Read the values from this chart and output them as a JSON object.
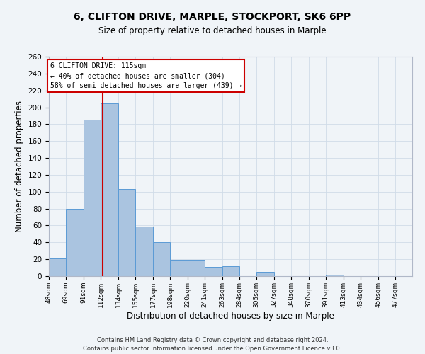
{
  "title": "6, CLIFTON DRIVE, MARPLE, STOCKPORT, SK6 6PP",
  "subtitle": "Size of property relative to detached houses in Marple",
  "xlabel": "Distribution of detached houses by size in Marple",
  "ylabel": "Number of detached properties",
  "bin_labels": [
    "48sqm",
    "69sqm",
    "91sqm",
    "112sqm",
    "134sqm",
    "155sqm",
    "177sqm",
    "198sqm",
    "220sqm",
    "241sqm",
    "263sqm",
    "284sqm",
    "305sqm",
    "327sqm",
    "348sqm",
    "370sqm",
    "391sqm",
    "413sqm",
    "434sqm",
    "456sqm",
    "477sqm"
  ],
  "bar_values": [
    21,
    80,
    185,
    205,
    103,
    59,
    40,
    19,
    19,
    11,
    12,
    0,
    5,
    0,
    0,
    0,
    2,
    0,
    0,
    0,
    0
  ],
  "bar_color": "#aac4e0",
  "bar_edge_color": "#5b9bd5",
  "property_line_x": 115,
  "bin_edges": [
    48,
    69,
    91,
    112,
    134,
    155,
    177,
    198,
    220,
    241,
    263,
    284,
    305,
    327,
    348,
    370,
    391,
    413,
    434,
    456,
    477,
    498
  ],
  "ylim": [
    0,
    260
  ],
  "yticks": [
    0,
    20,
    40,
    60,
    80,
    100,
    120,
    140,
    160,
    180,
    200,
    220,
    240,
    260
  ],
  "annotation_title": "6 CLIFTON DRIVE: 115sqm",
  "annotation_line1": "← 40% of detached houses are smaller (304)",
  "annotation_line2": "58% of semi-detached houses are larger (439) →",
  "annotation_box_color": "#ffffff",
  "annotation_box_edge": "#cc0000",
  "property_line_color": "#cc0000",
  "grid_color": "#d0dce8",
  "background_color": "#f0f4f8",
  "footer_line1": "Contains HM Land Registry data © Crown copyright and database right 2024.",
  "footer_line2": "Contains public sector information licensed under the Open Government Licence v3.0."
}
